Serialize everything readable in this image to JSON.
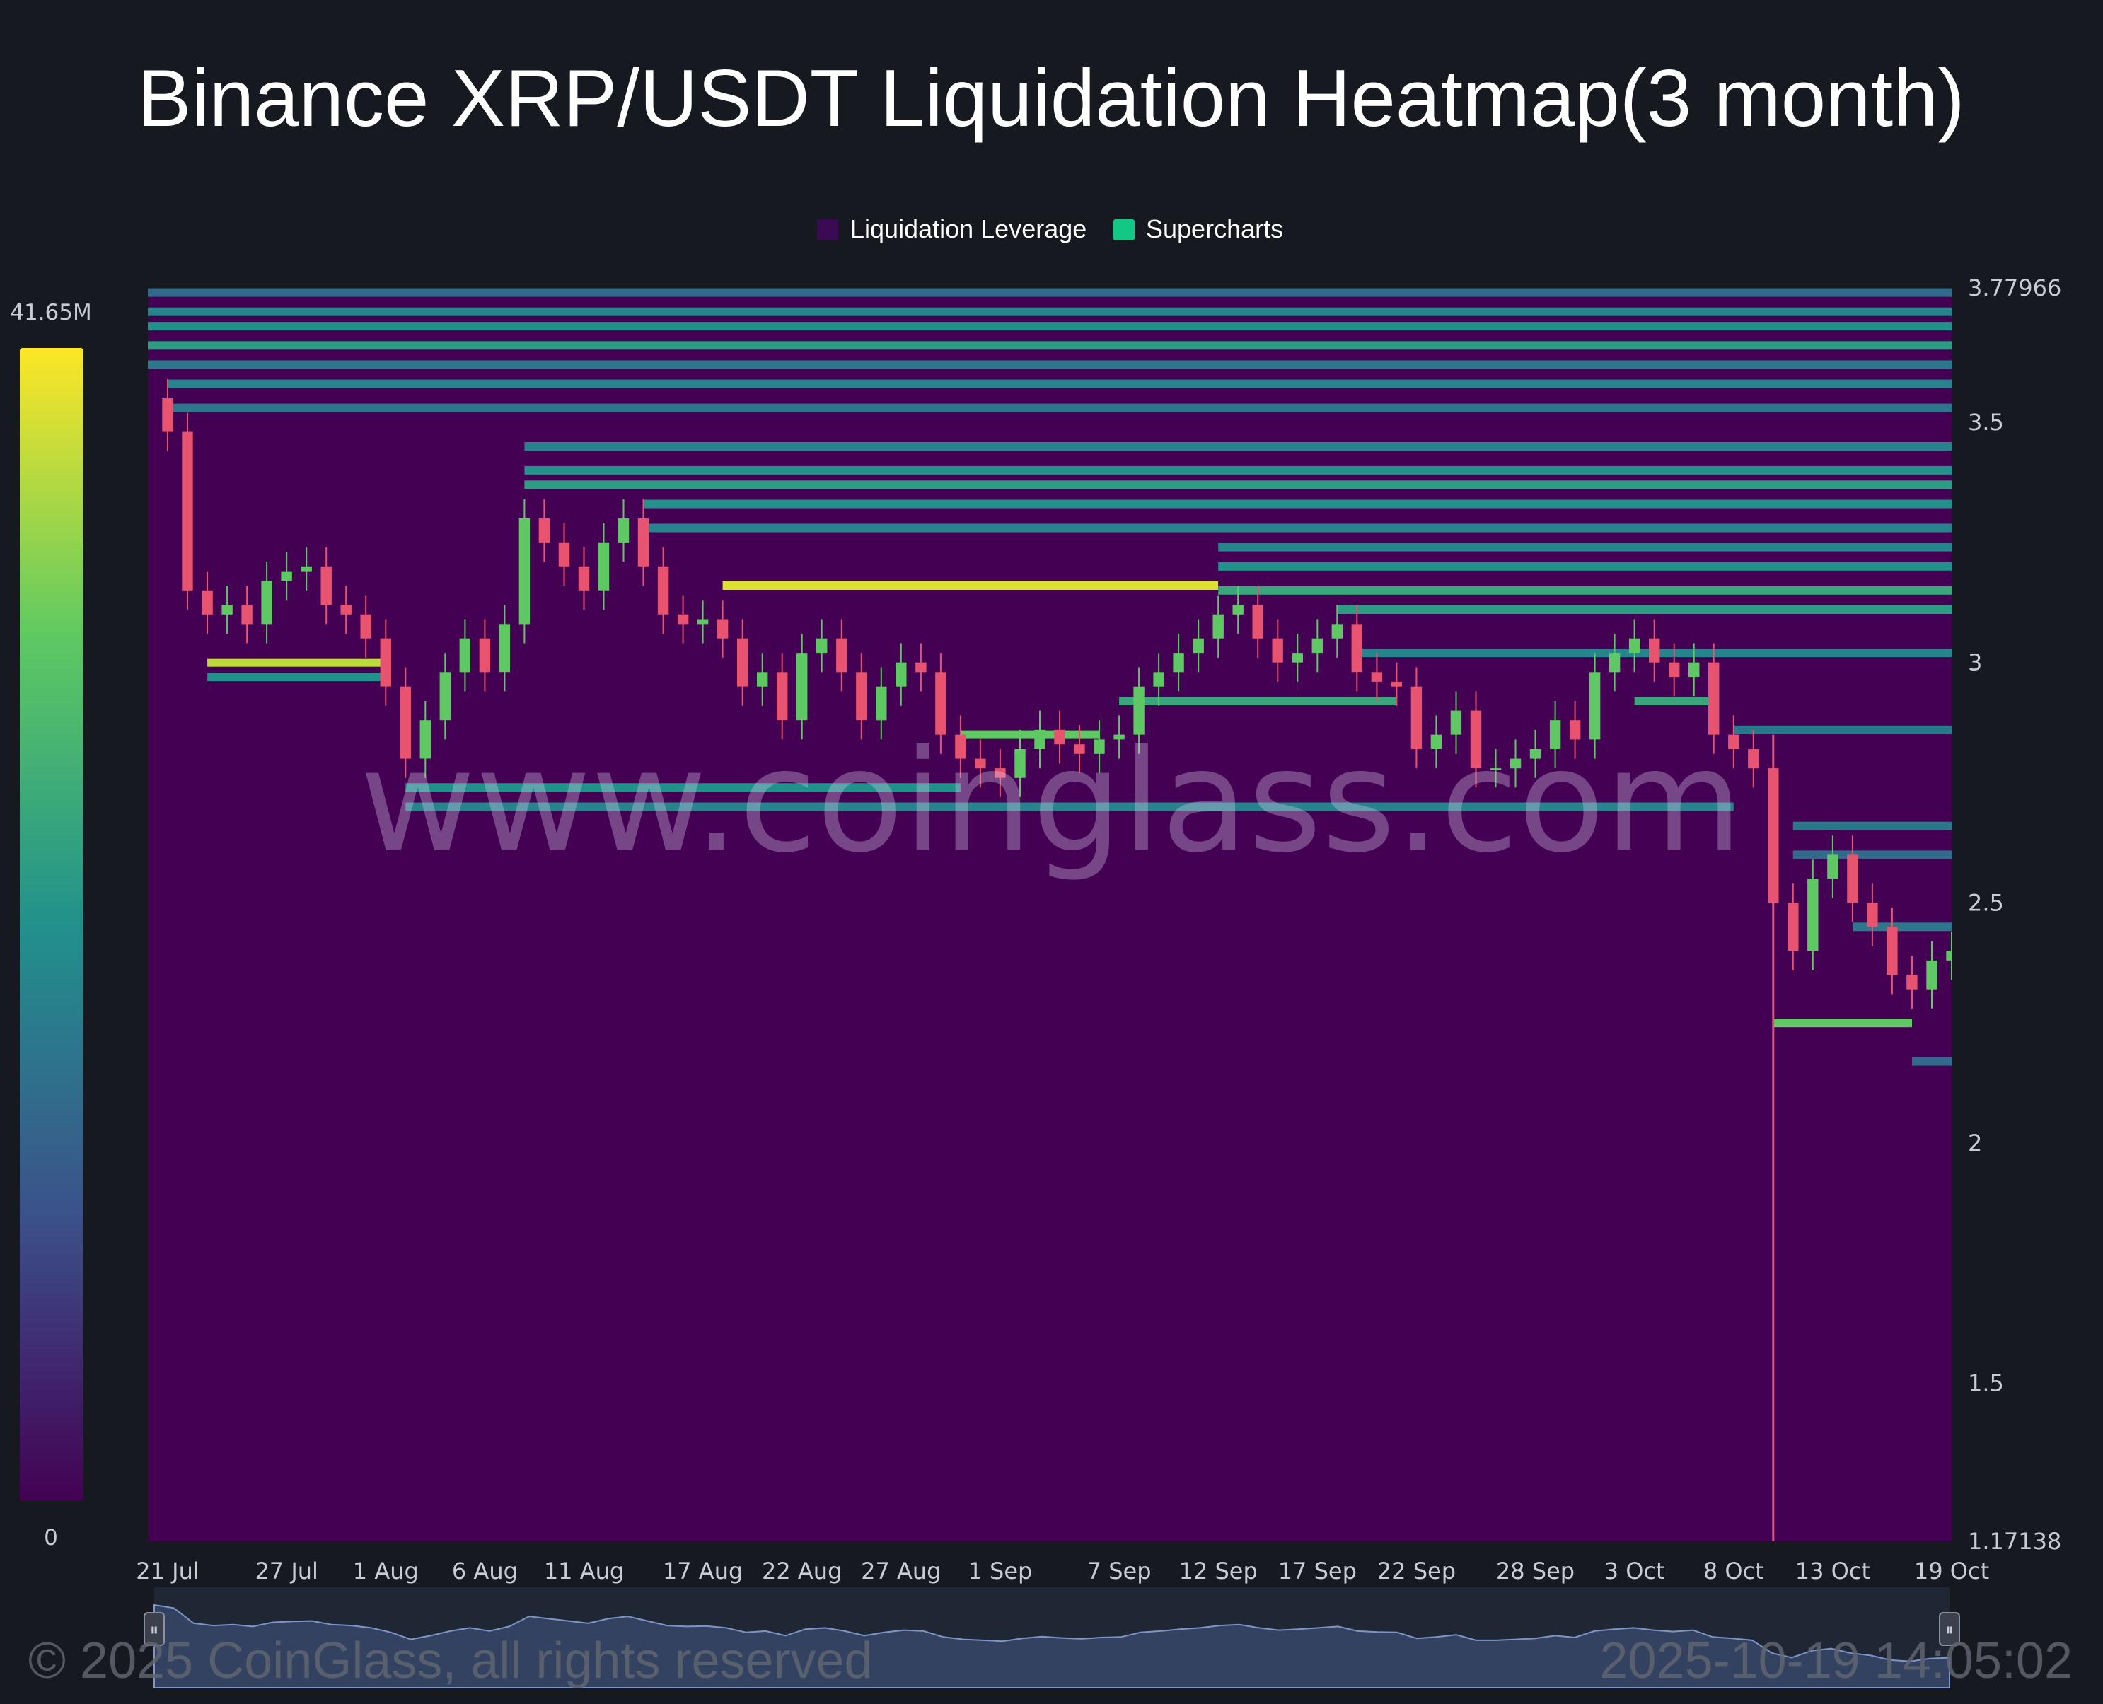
{
  "chart_data": {
    "type": "heatmap",
    "title": "Binance XRP/USDT Liquidation Heatmap(3 month)",
    "legend": {
      "placement": "top-center",
      "items": [
        {
          "label": "Liquidation Leverage",
          "color": "#3b0a55"
        },
        {
          "label": "Supercharts",
          "color": "#13c784"
        }
      ]
    },
    "color_scale": {
      "min_label": "0",
      "max_label": "41.65M",
      "min": 0,
      "max": 41650000,
      "colors": [
        "#440154",
        "#3b528b",
        "#21918c",
        "#5ec962",
        "#fde725"
      ]
    },
    "y_axis": {
      "min": 1.17138,
      "max": 3.77966,
      "ticks": [
        {
          "value": 3.77966,
          "label": "3.77966"
        },
        {
          "value": 3.5,
          "label": "3.5"
        },
        {
          "value": 3,
          "label": "3"
        },
        {
          "value": 2.5,
          "label": "2.5"
        },
        {
          "value": 2,
          "label": "2"
        },
        {
          "value": 1.5,
          "label": "1.5"
        },
        {
          "value": 1.17138,
          "label": "1.17138"
        }
      ]
    },
    "x_axis": {
      "start": "2025-07-20",
      "end": "2025-10-19",
      "ticks": [
        {
          "date": "2025-07-21",
          "label": "21 Jul"
        },
        {
          "date": "2025-07-27",
          "label": "27 Jul"
        },
        {
          "date": "2025-08-01",
          "label": "1 Aug"
        },
        {
          "date": "2025-08-06",
          "label": "6 Aug"
        },
        {
          "date": "2025-08-11",
          "label": "11 Aug"
        },
        {
          "date": "2025-08-17",
          "label": "17 Aug"
        },
        {
          "date": "2025-08-22",
          "label": "22 Aug"
        },
        {
          "date": "2025-08-27",
          "label": "27 Aug"
        },
        {
          "date": "2025-09-01",
          "label": "1 Sep"
        },
        {
          "date": "2025-09-07",
          "label": "7 Sep"
        },
        {
          "date": "2025-09-12",
          "label": "12 Sep"
        },
        {
          "date": "2025-09-17",
          "label": "17 Sep"
        },
        {
          "date": "2025-09-22",
          "label": "22 Sep"
        },
        {
          "date": "2025-09-28",
          "label": "28 Sep"
        },
        {
          "date": "2025-10-03",
          "label": "3 Oct"
        },
        {
          "date": "2025-10-08",
          "label": "8 Oct"
        },
        {
          "date": "2025-10-13",
          "label": "13 Oct"
        },
        {
          "date": "2025-10-19",
          "label": "19 Oct"
        }
      ]
    },
    "price_series": {
      "name": "XRP/USDT close",
      "points": [
        [
          "2025-07-20",
          3.55
        ],
        [
          "2025-07-21",
          3.48
        ],
        [
          "2025-07-22",
          3.15
        ],
        [
          "2025-07-23",
          3.1
        ],
        [
          "2025-07-24",
          3.12
        ],
        [
          "2025-07-25",
          3.08
        ],
        [
          "2025-07-26",
          3.17
        ],
        [
          "2025-07-27",
          3.19
        ],
        [
          "2025-07-28",
          3.2
        ],
        [
          "2025-07-29",
          3.12
        ],
        [
          "2025-07-30",
          3.1
        ],
        [
          "2025-07-31",
          3.05
        ],
        [
          "2025-08-01",
          2.95
        ],
        [
          "2025-08-02",
          2.8
        ],
        [
          "2025-08-03",
          2.88
        ],
        [
          "2025-08-04",
          2.98
        ],
        [
          "2025-08-05",
          3.05
        ],
        [
          "2025-08-06",
          2.98
        ],
        [
          "2025-08-07",
          3.08
        ],
        [
          "2025-08-08",
          3.3
        ],
        [
          "2025-08-09",
          3.25
        ],
        [
          "2025-08-10",
          3.2
        ],
        [
          "2025-08-11",
          3.15
        ],
        [
          "2025-08-12",
          3.25
        ],
        [
          "2025-08-13",
          3.3
        ],
        [
          "2025-08-14",
          3.2
        ],
        [
          "2025-08-15",
          3.1
        ],
        [
          "2025-08-16",
          3.08
        ],
        [
          "2025-08-17",
          3.09
        ],
        [
          "2025-08-18",
          3.05
        ],
        [
          "2025-08-19",
          2.95
        ],
        [
          "2025-08-20",
          2.98
        ],
        [
          "2025-08-21",
          2.88
        ],
        [
          "2025-08-22",
          3.02
        ],
        [
          "2025-08-23",
          3.05
        ],
        [
          "2025-08-24",
          2.98
        ],
        [
          "2025-08-25",
          2.88
        ],
        [
          "2025-08-26",
          2.95
        ],
        [
          "2025-08-27",
          3.0
        ],
        [
          "2025-08-28",
          2.98
        ],
        [
          "2025-08-29",
          2.85
        ],
        [
          "2025-08-30",
          2.8
        ],
        [
          "2025-08-31",
          2.78
        ],
        [
          "2025-09-01",
          2.76
        ],
        [
          "2025-09-02",
          2.82
        ],
        [
          "2025-09-03",
          2.86
        ],
        [
          "2025-09-04",
          2.83
        ],
        [
          "2025-09-05",
          2.81
        ],
        [
          "2025-09-06",
          2.84
        ],
        [
          "2025-09-07",
          2.85
        ],
        [
          "2025-09-08",
          2.95
        ],
        [
          "2025-09-09",
          2.98
        ],
        [
          "2025-09-10",
          3.02
        ],
        [
          "2025-09-11",
          3.05
        ],
        [
          "2025-09-12",
          3.1
        ],
        [
          "2025-09-13",
          3.12
        ],
        [
          "2025-09-14",
          3.05
        ],
        [
          "2025-09-15",
          3.0
        ],
        [
          "2025-09-16",
          3.02
        ],
        [
          "2025-09-17",
          3.05
        ],
        [
          "2025-09-18",
          3.08
        ],
        [
          "2025-09-19",
          2.98
        ],
        [
          "2025-09-20",
          2.96
        ],
        [
          "2025-09-21",
          2.95
        ],
        [
          "2025-09-22",
          2.82
        ],
        [
          "2025-09-23",
          2.85
        ],
        [
          "2025-09-24",
          2.9
        ],
        [
          "2025-09-25",
          2.78
        ],
        [
          "2025-09-26",
          2.78
        ],
        [
          "2025-09-27",
          2.8
        ],
        [
          "2025-09-28",
          2.82
        ],
        [
          "2025-09-29",
          2.88
        ],
        [
          "2025-09-30",
          2.84
        ],
        [
          "2025-10-01",
          2.98
        ],
        [
          "2025-10-02",
          3.02
        ],
        [
          "2025-10-03",
          3.05
        ],
        [
          "2025-10-04",
          3.0
        ],
        [
          "2025-10-05",
          2.97
        ],
        [
          "2025-10-06",
          3.0
        ],
        [
          "2025-10-07",
          2.85
        ],
        [
          "2025-10-08",
          2.82
        ],
        [
          "2025-10-09",
          2.78
        ],
        [
          "2025-10-10",
          2.5
        ],
        [
          "2025-10-11",
          2.4
        ],
        [
          "2025-10-12",
          2.55
        ],
        [
          "2025-10-13",
          2.6
        ],
        [
          "2025-10-14",
          2.5
        ],
        [
          "2025-10-15",
          2.45
        ],
        [
          "2025-10-16",
          2.35
        ],
        [
          "2025-10-17",
          2.32
        ],
        [
          "2025-10-18",
          2.38
        ],
        [
          "2025-10-19",
          2.4
        ]
      ],
      "flash_crash_low": {
        "date": "2025-10-10",
        "value": 1.17138
      }
    },
    "heat_bands": [
      {
        "price": 3.77,
        "start": "2025-07-20",
        "end": "2025-10-19",
        "intensity": 0.35
      },
      {
        "price": 3.73,
        "start": "2025-07-20",
        "end": "2025-10-19",
        "intensity": 0.45
      },
      {
        "price": 3.7,
        "start": "2025-07-20",
        "end": "2025-10-19",
        "intensity": 0.5
      },
      {
        "price": 3.66,
        "start": "2025-07-20",
        "end": "2025-10-19",
        "intensity": 0.55
      },
      {
        "price": 3.62,
        "start": "2025-07-20",
        "end": "2025-10-19",
        "intensity": 0.4
      },
      {
        "price": 3.58,
        "start": "2025-07-21",
        "end": "2025-10-19",
        "intensity": 0.45
      },
      {
        "price": 3.53,
        "start": "2025-07-21",
        "end": "2025-10-19",
        "intensity": 0.4
      },
      {
        "price": 3.45,
        "start": "2025-08-08",
        "end": "2025-10-19",
        "intensity": 0.45
      },
      {
        "price": 3.4,
        "start": "2025-08-08",
        "end": "2025-10-19",
        "intensity": 0.5
      },
      {
        "price": 3.37,
        "start": "2025-08-08",
        "end": "2025-10-19",
        "intensity": 0.55
      },
      {
        "price": 3.33,
        "start": "2025-08-14",
        "end": "2025-10-19",
        "intensity": 0.5
      },
      {
        "price": 3.28,
        "start": "2025-08-14",
        "end": "2025-10-19",
        "intensity": 0.45
      },
      {
        "price": 3.24,
        "start": "2025-09-12",
        "end": "2025-10-19",
        "intensity": 0.45
      },
      {
        "price": 3.2,
        "start": "2025-09-12",
        "end": "2025-10-19",
        "intensity": 0.5
      },
      {
        "price": 3.16,
        "start": "2025-08-18",
        "end": "2025-09-12",
        "intensity": 0.95
      },
      {
        "price": 3.15,
        "start": "2025-09-12",
        "end": "2025-10-19",
        "intensity": 0.6
      },
      {
        "price": 3.11,
        "start": "2025-09-18",
        "end": "2025-10-19",
        "intensity": 0.55
      },
      {
        "price": 3.02,
        "start": "2025-09-19",
        "end": "2025-10-19",
        "intensity": 0.45
      },
      {
        "price": 3.0,
        "start": "2025-07-23",
        "end": "2025-08-01",
        "intensity": 0.9
      },
      {
        "price": 2.97,
        "start": "2025-07-23",
        "end": "2025-08-01",
        "intensity": 0.5
      },
      {
        "price": 2.92,
        "start": "2025-10-03",
        "end": "2025-10-07",
        "intensity": 0.6
      },
      {
        "price": 2.92,
        "start": "2025-09-07",
        "end": "2025-09-21",
        "intensity": 0.6
      },
      {
        "price": 2.86,
        "start": "2025-10-08",
        "end": "2025-10-19",
        "intensity": 0.4
      },
      {
        "price": 2.85,
        "start": "2025-08-30",
        "end": "2025-09-06",
        "intensity": 0.75
      },
      {
        "price": 2.74,
        "start": "2025-08-02",
        "end": "2025-08-30",
        "intensity": 0.5
      },
      {
        "price": 2.7,
        "start": "2025-08-02",
        "end": "2025-10-08",
        "intensity": 0.45
      },
      {
        "price": 2.66,
        "start": "2025-10-11",
        "end": "2025-10-19",
        "intensity": 0.4
      },
      {
        "price": 2.6,
        "start": "2025-10-11",
        "end": "2025-10-19",
        "intensity": 0.35
      },
      {
        "price": 2.45,
        "start": "2025-10-14",
        "end": "2025-10-19",
        "intensity": 0.4
      },
      {
        "price": 2.25,
        "start": "2025-10-10",
        "end": "2025-10-17",
        "intensity": 0.75
      },
      {
        "price": 2.17,
        "start": "2025-10-17",
        "end": "2025-10-19",
        "intensity": 0.35
      }
    ]
  },
  "watermark": "www.coinglass.com",
  "footer": {
    "copyright": "© 2025 CoinGlass, all rights reserved",
    "timestamp": "2025-10-19 14:05:02"
  },
  "colors": {
    "background": "#161a20",
    "heatmap_base": "#440154",
    "candle_up": "#5ec962",
    "candle_down": "#e8536f",
    "navigator_fill": "#2f3b5a"
  },
  "navigator": {
    "left_handle_icon": "pause-icon",
    "right_handle_icon": "pause-icon"
  }
}
